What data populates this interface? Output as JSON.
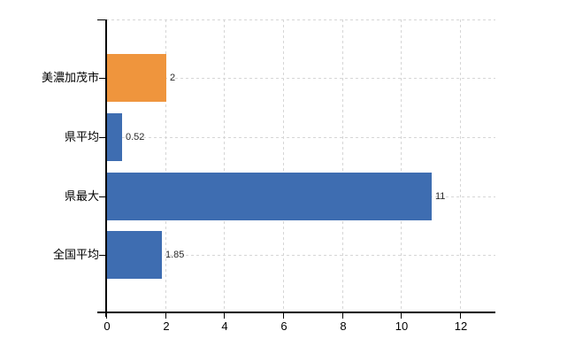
{
  "chart_data": {
    "type": "bar",
    "orientation": "horizontal",
    "title": "",
    "xlabel": "",
    "ylabel": "",
    "categories": [
      "美濃加茂市",
      "県平均",
      "県最大",
      "全国平均"
    ],
    "values": [
      2,
      0.52,
      11,
      1.85
    ],
    "value_labels": [
      "2",
      "0.52",
      "11",
      "1.85"
    ],
    "bar_colors": [
      "#ef953d",
      "#3e6db1",
      "#3e6db1",
      "#3e6db1"
    ],
    "x_tick_values": [
      0,
      2,
      4,
      6,
      8,
      10,
      12
    ],
    "x_tick_labels": [
      "0",
      "2",
      "4",
      "6",
      "8",
      "10",
      "12"
    ],
    "xlim": [
      0,
      13.2
    ],
    "grid": {
      "style": "dashed",
      "color": "#d6d6d6",
      "vertical_at_x_ticks": true,
      "horizontal_at_category_centers": true,
      "top_boundary_line": true
    },
    "legend": "none"
  },
  "colors": {
    "background": "#ffffff",
    "axis": "#000000",
    "gridline": "#d6d6d6",
    "bar_highlight_orange": "#ef953d",
    "bar_default_blue": "#3e6db1",
    "category_text": "#000000",
    "value_text": "#2a2a2a",
    "tick_text": "#000000"
  }
}
